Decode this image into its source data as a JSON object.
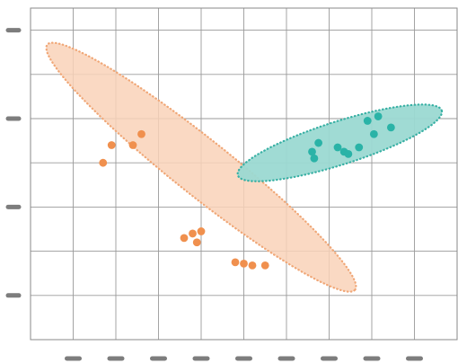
{
  "chart_data": {
    "type": "scatter",
    "xlim": [
      0,
      10
    ],
    "ylim": [
      0,
      7.5
    ],
    "x_ticks": [
      1,
      2,
      3,
      4,
      5,
      6,
      7,
      8,
      9
    ],
    "y_ticks": [
      1,
      3,
      5,
      7
    ],
    "tick_labels_visible": false,
    "grid": true,
    "legend": "none",
    "series": [
      {
        "color": "#f0904e",
        "fill": "#f9d2b8",
        "hull_color": "#f0a777",
        "points": [
          [
            1.7,
            4.0
          ],
          [
            1.9,
            4.4
          ],
          [
            2.4,
            4.4
          ],
          [
            2.6,
            4.65
          ],
          [
            3.6,
            2.3
          ],
          [
            3.8,
            2.4
          ],
          [
            3.9,
            2.2
          ],
          [
            4.0,
            2.45
          ],
          [
            4.8,
            1.75
          ],
          [
            5.0,
            1.72
          ],
          [
            5.2,
            1.68
          ],
          [
            5.5,
            1.68
          ]
        ],
        "ellipse": {
          "center": [
            4.0,
            3.9
          ],
          "semi_major": 4.55,
          "semi_minor": 0.64,
          "angle_deg": -37.5
        }
      },
      {
        "color": "#2ab3a7",
        "fill": "#9bd9d2",
        "hull_color": "#38b0a4",
        "points": [
          [
            6.6,
            4.25
          ],
          [
            6.65,
            4.1
          ],
          [
            6.75,
            4.45
          ],
          [
            7.2,
            4.35
          ],
          [
            7.35,
            4.25
          ],
          [
            7.45,
            4.2
          ],
          [
            7.7,
            4.35
          ],
          [
            7.9,
            4.95
          ],
          [
            8.05,
            4.65
          ],
          [
            8.15,
            5.05
          ],
          [
            8.45,
            4.8
          ]
        ],
        "ellipse": {
          "center": [
            7.25,
            4.45
          ],
          "semi_major": 2.5,
          "semi_minor": 0.49,
          "angle_deg": 17
        }
      }
    ]
  }
}
